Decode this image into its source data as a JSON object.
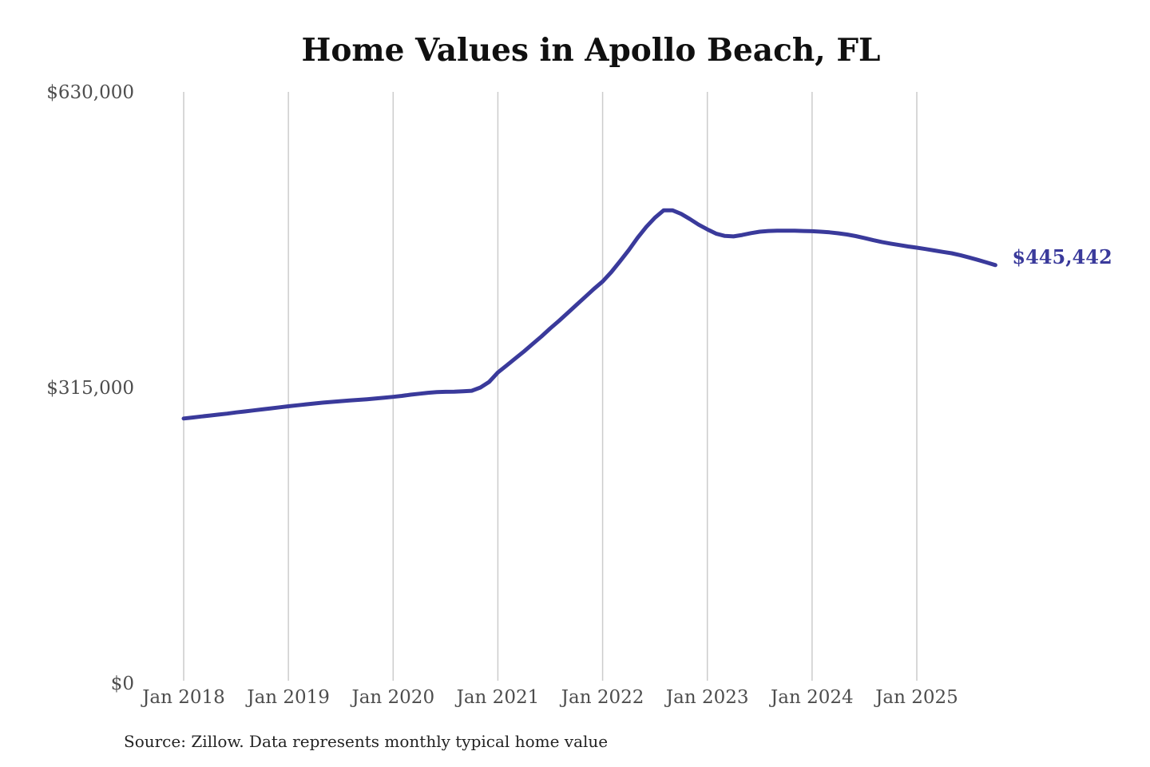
{
  "chart_data": {
    "type": "line",
    "title": "Home Values in Apollo Beach, FL",
    "xlabel": "",
    "ylabel": "",
    "ylim": [
      0,
      630000
    ],
    "grid": "vertical-only",
    "legend": "none",
    "end_label": "$445,442",
    "end_value": 445442,
    "source": "Source: Zillow. Data represents monthly typical home value",
    "y_ticks": [
      {
        "label": "$0",
        "value": 0
      },
      {
        "label": "$315,000",
        "value": 315000
      },
      {
        "label": "$630,000",
        "value": 630000
      }
    ],
    "x_ticks": [
      {
        "label": "Jan 2018",
        "month_index": 0
      },
      {
        "label": "Jan 2019",
        "month_index": 12
      },
      {
        "label": "Jan 2020",
        "month_index": 24
      },
      {
        "label": "Jan 2021",
        "month_index": 36
      },
      {
        "label": "Jan 2022",
        "month_index": 48
      },
      {
        "label": "Jan 2023",
        "month_index": 60
      },
      {
        "label": "Jan 2024",
        "month_index": 72
      },
      {
        "label": "Jan 2025",
        "month_index": 84
      }
    ],
    "series": [
      {
        "name": "Monthly typical home value",
        "frequency": "monthly",
        "start": "Jan 2018",
        "end": "Oct 2025",
        "values": [
          282000,
          283000,
          284100,
          285100,
          286100,
          287200,
          288400,
          289500,
          290600,
          291700,
          292800,
          293900,
          295000,
          296000,
          297000,
          298000,
          298900,
          299700,
          300400,
          301100,
          301800,
          302500,
          303300,
          304100,
          305000,
          306100,
          307300,
          308400,
          309400,
          310100,
          310400,
          310600,
          311000,
          311500,
          315000,
          321000,
          331000,
          338500,
          346000,
          353500,
          361500,
          369500,
          378000,
          386000,
          394500,
          403000,
          411500,
          420000,
          428000,
          438000,
          449500,
          461500,
          474500,
          486000,
          496000,
          503800,
          503800,
          500000,
          494500,
          488500,
          483500,
          479000,
          476500,
          476000,
          477500,
          479500,
          481000,
          481800,
          482000,
          482000,
          482000,
          481800,
          481500,
          481000,
          480300,
          479300,
          478000,
          476300,
          474300,
          472000,
          470000,
          468300,
          466800,
          465300,
          464000,
          462500,
          461000,
          459500,
          458000,
          456000,
          453500,
          451000,
          448200,
          445442
        ]
      }
    ],
    "colors": {
      "line": "#3a3a9b",
      "grid": "#cccccc",
      "axis_text": "#4d4d4d",
      "title_text": "#101010",
      "source_text": "#232323",
      "background": "#ffffff"
    }
  }
}
